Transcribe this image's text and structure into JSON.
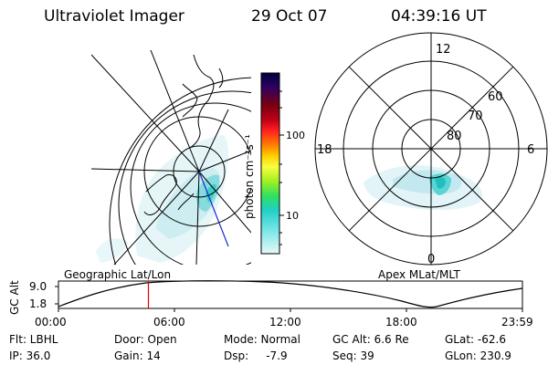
{
  "header": {
    "instrument": "Ultraviolet Imager",
    "date": "29 Oct 07",
    "time": "04:39:16 UT"
  },
  "colorbar": {
    "unit_label": "photon cm⁻²s⁻¹",
    "tick_labels": [
      "100",
      "10"
    ],
    "stops": [
      "#000040",
      "#300060",
      "#7a0010",
      "#c00018",
      "#ff2020",
      "#ff8000",
      "#ffd000",
      "#f8ff40",
      "#a0f020",
      "#30e060",
      "#20d0c8",
      "#80e8e8",
      "#e8f8f8"
    ]
  },
  "geo_panel": {
    "caption": "Geographic Lat/Lon"
  },
  "apex_panel": {
    "caption": "Apex MLat/MLT",
    "mlt_labels": {
      "top": "12",
      "bottom": "0",
      "left": "18",
      "right": "6"
    },
    "lat_labels": [
      "60",
      "70",
      "80"
    ]
  },
  "timeline": {
    "ylabel": "GC Alt",
    "ytick_top": "9.0",
    "ytick_bottom": "1.8",
    "xtick_labels": [
      "00:00",
      "06:00",
      "12:00",
      "18:00",
      "23:59"
    ],
    "marker_time": "04:39"
  },
  "status": {
    "row1": [
      "Flt: LBHL",
      "Door: Open",
      "Mode: Normal",
      "GC Alt: 6.6 Re",
      "GLat: -62.6"
    ],
    "row2": [
      "IP: 36.0",
      "Gain: 14",
      "Dsp:     -7.9",
      "Seq: 39",
      "GLon: 230.9"
    ]
  },
  "accent": {
    "marker": "#e00000",
    "aurora_low": "#c8ecf0",
    "aurora_high": "#28d0c8"
  }
}
